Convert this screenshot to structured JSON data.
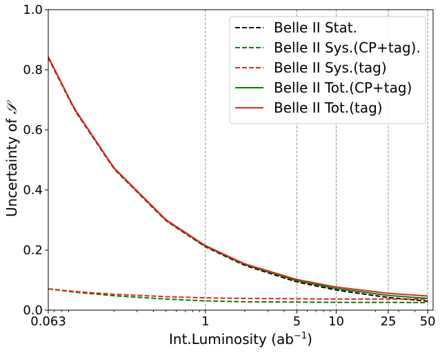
{
  "chart_data": {
    "type": "line",
    "xlabel": "Int.Luminosity (ab",
    "xlabel_sup": "−1",
    "xlabel_suffix": ")",
    "ylabel": "Uncertainty of ",
    "ylabel_symbol": "𝒮",
    "xscale": "log",
    "xlim": [
      0.063,
      55
    ],
    "ylim": [
      0.0,
      1.0
    ],
    "xticks": [
      0.063,
      1,
      5,
      10,
      25,
      50
    ],
    "xtick_labels": [
      "0.063",
      "1",
      "5",
      "10",
      "25",
      "50"
    ],
    "yticks": [
      0.0,
      0.2,
      0.4,
      0.6,
      0.8,
      1.0
    ],
    "ytick_labels": [
      "0.0",
      "0.2",
      "0.4",
      "0.6",
      "0.8",
      "1.0"
    ],
    "vertical_gridlines_at": [
      1,
      5,
      10,
      25,
      50
    ],
    "legend_position": "top-right",
    "series": [
      {
        "name": "Belle II Stat.",
        "color": "#000000",
        "style": "dashed",
        "x": [
          0.063,
          0.1,
          0.2,
          0.5,
          1,
          2,
          5,
          10,
          25,
          50
        ],
        "y": [
          0.84,
          0.667,
          0.471,
          0.298,
          0.211,
          0.149,
          0.094,
          0.067,
          0.042,
          0.03
        ]
      },
      {
        "name": "Belle II Sys.(CP+tag).",
        "color": "#008000",
        "style": "dashed",
        "x": [
          0.063,
          0.1,
          0.2,
          0.5,
          1,
          2,
          5,
          10,
          25,
          50
        ],
        "y": [
          0.071,
          0.06,
          0.048,
          0.037,
          0.031,
          0.028,
          0.027,
          0.026,
          0.026,
          0.025
        ]
      },
      {
        "name": "Belle II Sys.(tag)",
        "color": "#e8221c",
        "style": "dashed",
        "x": [
          0.063,
          0.1,
          0.2,
          0.5,
          1,
          2,
          5,
          10,
          25,
          50
        ],
        "y": [
          0.071,
          0.062,
          0.053,
          0.045,
          0.041,
          0.039,
          0.038,
          0.037,
          0.037,
          0.037
        ]
      },
      {
        "name": "Belle II Tot.(CP+tag)",
        "color": "#008000",
        "style": "solid",
        "x": [
          0.063,
          0.1,
          0.2,
          0.5,
          1,
          2,
          5,
          10,
          25,
          50
        ],
        "y": [
          0.843,
          0.67,
          0.473,
          0.3,
          0.213,
          0.152,
          0.098,
          0.072,
          0.049,
          0.039
        ]
      },
      {
        "name": "Belle II Tot.(tag)",
        "color": "#e8221c",
        "style": "solid",
        "x": [
          0.063,
          0.1,
          0.2,
          0.5,
          1,
          2,
          5,
          10,
          25,
          50
        ],
        "y": [
          0.843,
          0.67,
          0.474,
          0.301,
          0.215,
          0.154,
          0.102,
          0.077,
          0.056,
          0.047
        ]
      }
    ]
  }
}
